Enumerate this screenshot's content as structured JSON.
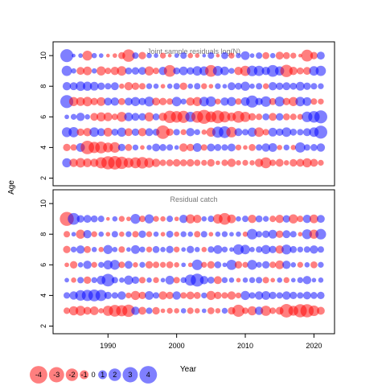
{
  "chart_data": [
    {
      "type": "scatter",
      "title": "Joint sample residuals log(N)",
      "ylabel": "Age",
      "xlim": [
        1982,
        2023
      ],
      "ylim": [
        1.5,
        10.9
      ],
      "yticks": [
        2,
        4,
        6,
        8,
        10
      ],
      "xticks": [],
      "ages": [
        3,
        4,
        5,
        6,
        7,
        8,
        9,
        10
      ],
      "years": [
        1984,
        1985,
        1986,
        1987,
        1988,
        1989,
        1990,
        1991,
        1992,
        1993,
        1994,
        1995,
        1996,
        1997,
        1998,
        1999,
        2000,
        2001,
        2002,
        2003,
        2004,
        2005,
        2006,
        2007,
        2008,
        2009,
        2010,
        2011,
        2012,
        2013,
        2014,
        2015,
        2016,
        2017,
        2018,
        2019,
        2020,
        2021
      ],
      "residual_sign_note": "positive = blue, negative = red; magnitude = circle size",
      "residuals": [
        [
          1.2,
          -1.0,
          -1.3,
          -1.1,
          -1.0,
          -1.8,
          -2.5,
          -2.6,
          -2.2,
          -1.4,
          -1.7,
          -1.9,
          -1.4,
          -1.0,
          -0.6,
          -0.7,
          -0.8,
          -0.7,
          -0.8,
          -0.6,
          -0.5,
          -0.8,
          -0.3,
          -0.6,
          -1.0,
          -0.4,
          -0.5,
          -0.4,
          -1.0,
          -1.7,
          -0.6,
          -0.9,
          -0.4,
          -0.8,
          -0.9,
          -1.2,
          -0.9,
          -0.5
        ],
        [
          -0.8,
          -0.6,
          1.1,
          -2.6,
          -1.8,
          -2.0,
          -1.4,
          -1.6,
          0.8,
          -0.7,
          0.5,
          -0.3,
          0.4,
          0.9,
          0.7,
          0.6,
          0.3,
          -1.0,
          -0.8,
          1.1,
          -0.6,
          0.9,
          0.7,
          0.6,
          0.9,
          -0.5,
          -0.3,
          -0.7,
          0.6,
          1.0,
          1.1,
          -0.4,
          0.5,
          -0.4,
          1.5,
          0.6,
          0.7,
          1.0
        ],
        [
          1.4,
          1.5,
          -0.8,
          -1.0,
          1.3,
          0.9,
          -1.1,
          0.7,
          1.2,
          -0.9,
          0.8,
          -1.0,
          0.9,
          0.7,
          -2.6,
          -0.8,
          0.6,
          -0.5,
          1.0,
          0.5,
          -0.4,
          -1.2,
          1.8,
          2.0,
          -1.6,
          0.9,
          0.6,
          1.2,
          -1.3,
          -0.6,
          1.1,
          0.8,
          1.3,
          0.7,
          0.6,
          0.9,
          1.3,
          2.4
        ],
        [
          0.3,
          0.5,
          1.0,
          0.4,
          -0.9,
          -1.2,
          -1.1,
          -0.6,
          -1.4,
          1.1,
          0.9,
          0.8,
          -1.2,
          0.7,
          -1.0,
          -2.2,
          -1.9,
          -2.1,
          1.5,
          -2.0,
          -2.8,
          -1.7,
          -2.4,
          -1.8,
          -1.1,
          -2.0,
          -1.5,
          -0.8,
          -0.6,
          0.7,
          -0.9,
          0.8,
          -0.7,
          -0.6,
          -0.5,
          1.6,
          1.9,
          2.4
        ],
        [
          2.4,
          -1.2,
          -1.1,
          -1.3,
          -0.8,
          -1.1,
          0.9,
          1.0,
          -0.7,
          0.9,
          1.2,
          0.8,
          1.4,
          -0.9,
          -0.8,
          -0.6,
          1.3,
          0.5,
          -1.0,
          -1.2,
          1.3,
          1.5,
          -0.5,
          1.0,
          1.2,
          -0.6,
          1.1,
          2.1,
          0.8,
          1.6,
          -0.7,
          1.4,
          -0.8,
          -1.2,
          1.3,
          1.1,
          -0.6,
          -0.5
        ],
        [
          1.0,
          0.9,
          1.3,
          1.2,
          1.1,
          0.8,
          0.6,
          0.9,
          -0.4,
          -1.0,
          -0.8,
          -0.6,
          0.5,
          0.4,
          -0.3,
          0.4,
          0.6,
          -0.8,
          0.4,
          0.6,
          -0.5,
          -0.3,
          0.5,
          0.3,
          0.9,
          0.7,
          1.2,
          0.4,
          0.6,
          -0.5,
          1.0,
          0.8,
          0.9,
          0.7,
          1.1,
          0.8,
          0.6,
          0.5
        ],
        [
          1.5,
          0.4,
          -0.9,
          -1.1,
          0.4,
          -1.2,
          -0.6,
          -1.0,
          -1.3,
          0.7,
          0.8,
          0.9,
          -1.2,
          -0.6,
          1.0,
          -2.0,
          0.7,
          1.1,
          0.8,
          1.3,
          1.2,
          -2.0,
          1.4,
          1.1,
          0.5,
          -1.0,
          -1.5,
          1.6,
          1.5,
          1.0,
          2.0,
          1.2,
          -2.2,
          -1.0,
          -0.7,
          -0.9,
          1.3,
          1.5
        ],
        [
          2.4,
          0.2,
          0.3,
          -1.4,
          0.4,
          0.3,
          -0.2,
          -0.3,
          -0.7,
          -2.2,
          0.6,
          -0.8,
          0.4,
          0.3,
          -0.5,
          -0.2,
          0.3,
          0.6,
          -0.4,
          -0.3,
          0.2,
          0.6,
          -0.2,
          0.7,
          -0.5,
          0.4,
          1.1,
          0.3,
          0.6,
          -0.7,
          0.4,
          -0.9,
          -0.7,
          -0.5,
          -0.2,
          -2.0,
          -0.8,
          0.9
        ]
      ]
    },
    {
      "type": "scatter",
      "title": "Residual catch",
      "ylabel": "",
      "xlabel": "Year",
      "xlim": [
        1982,
        2023
      ],
      "ylim": [
        1.5,
        10.9
      ],
      "yticks": [
        2,
        4,
        6,
        8,
        10
      ],
      "xticks": [
        1990,
        2000,
        2010,
        2020
      ],
      "ages": [
        3,
        4,
        5,
        6,
        7,
        8,
        9
      ],
      "years": [
        1984,
        1985,
        1986,
        1987,
        1988,
        1989,
        1990,
        1991,
        1992,
        1993,
        1994,
        1995,
        1996,
        1997,
        1998,
        1999,
        2000,
        2001,
        2002,
        2003,
        2004,
        2005,
        2006,
        2007,
        2008,
        2009,
        2010,
        2011,
        2012,
        2013,
        2014,
        2015,
        2016,
        2017,
        2018,
        2019,
        2020,
        2021
      ],
      "residual_sign_note": "positive = blue, negative = red; magnitude = circle size",
      "residuals": [
        [
          -0.6,
          -1.2,
          -1.4,
          -0.9,
          -1.1,
          -0.4,
          -1.5,
          -2.0,
          -1.8,
          -2.2,
          1.0,
          -0.9,
          0.6,
          -0.8,
          -0.3,
          -0.5,
          -0.4,
          0.4,
          -0.6,
          -0.4,
          0.3,
          -0.7,
          -0.4,
          0.5,
          -0.8,
          -2.1,
          -0.6,
          -1.2,
          1.0,
          -1.5,
          -0.6,
          -0.9,
          -2.6,
          -1.4,
          -2.5,
          -2.5,
          -1.6,
          -0.9
        ],
        [
          0.6,
          1.0,
          1.6,
          1.8,
          2.0,
          1.8,
          0.8,
          0.6,
          1.0,
          -0.5,
          -1.2,
          -0.8,
          1.1,
          0.6,
          -1.0,
          -0.8,
          1.0,
          -0.6,
          -0.9,
          -0.7,
          0.5,
          -1.2,
          -0.8,
          -0.6,
          -1.0,
          -0.5,
          1.2,
          0.6,
          1.0,
          1.1,
          0.8,
          0.6,
          1.0,
          0.8,
          0.6,
          0.9,
          0.7,
          0.8
        ],
        [
          0.3,
          -0.4,
          0.6,
          -0.8,
          0.5,
          1.1,
          2.3,
          0.6,
          0.4,
          1.2,
          0.8,
          -0.6,
          0.4,
          -0.5,
          0.3,
          1.1,
          -0.6,
          0.5,
          1.8,
          2.4,
          1.0,
          0.7,
          -0.9,
          0.5,
          0.4,
          -0.3,
          0.4,
          0.5,
          0.6,
          -0.6,
          -0.3,
          0.4,
          -0.5,
          0.3,
          0.5,
          1.0,
          0.3,
          0.4
        ],
        [
          -0.3,
          -0.8,
          0.4,
          1.0,
          -0.5,
          0.5,
          1.2,
          1.4,
          -0.6,
          0.9,
          -0.4,
          0.5,
          -0.8,
          -0.6,
          -0.5,
          -0.7,
          -0.4,
          0.3,
          -0.3,
          1.6,
          -0.5,
          -0.8,
          0.7,
          0.3,
          1.5,
          -0.8,
          -0.5,
          1.4,
          0.5,
          0.8,
          -0.6,
          -1.1,
          1.0,
          0.4,
          -0.5,
          0.4,
          -0.7,
          0.5
        ],
        [
          -0.8,
          0.5,
          1.0,
          -0.7,
          0.4,
          -0.4,
          1.2,
          0.4,
          -0.6,
          0.3,
          1.1,
          0.5,
          -0.5,
          0.7,
          0.4,
          0.8,
          -0.5,
          0.3,
          0.8,
          0.4,
          -0.4,
          0.6,
          1.1,
          0.5,
          0.3,
          1.6,
          1.3,
          0.4,
          0.6,
          1.2,
          0.8,
          -1.0,
          1.4,
          0.7,
          0.5,
          0.6,
          1.0,
          0.6
        ],
        [
          -0.6,
          0.3,
          -1.2,
          1.0,
          -0.5,
          0.4,
          -0.3,
          0.6,
          -0.4,
          0.5,
          -0.6,
          0.8,
          -0.5,
          0.4,
          -0.3,
          0.7,
          -0.4,
          0.5,
          0.4,
          -0.6,
          0.6,
          -0.3,
          0.4,
          0.5,
          0.3,
          0.4,
          -0.4,
          1.6,
          0.6,
          0.8,
          1.1,
          -0.8,
          0.9,
          0.6,
          -0.3,
          1.4,
          -1.2,
          1.6
        ],
        [
          -2.8,
          2.0,
          0.8,
          0.9,
          0.7,
          0.6,
          -0.2,
          0.4,
          -0.5,
          -0.3,
          1.4,
          -0.6,
          1.2,
          -0.5,
          -0.4,
          0.6,
          -0.3,
          1.0,
          -1.2,
          -1.0,
          0.4,
          0.6,
          -1.3,
          -2.0,
          -1.1,
          0.4,
          0.6,
          -1.0,
          0.7,
          0.5,
          -0.6,
          -1.0,
          0.8,
          -1.2,
          -0.6,
          1.0,
          -1.1,
          0.9
        ]
      ]
    }
  ],
  "legend": {
    "values": [
      "-4",
      "-3",
      "-2",
      "-1",
      "0",
      "1",
      "2",
      "3",
      "4"
    ],
    "magnitudes": [
      -4,
      -3,
      -2,
      -1,
      0,
      1,
      2,
      3,
      4
    ]
  },
  "labels": {
    "ylabel": "Age",
    "xlabel": "Year"
  },
  "colors": {
    "positive": "#0000ff",
    "negative": "#ff0000",
    "grey_title": "#777777"
  }
}
